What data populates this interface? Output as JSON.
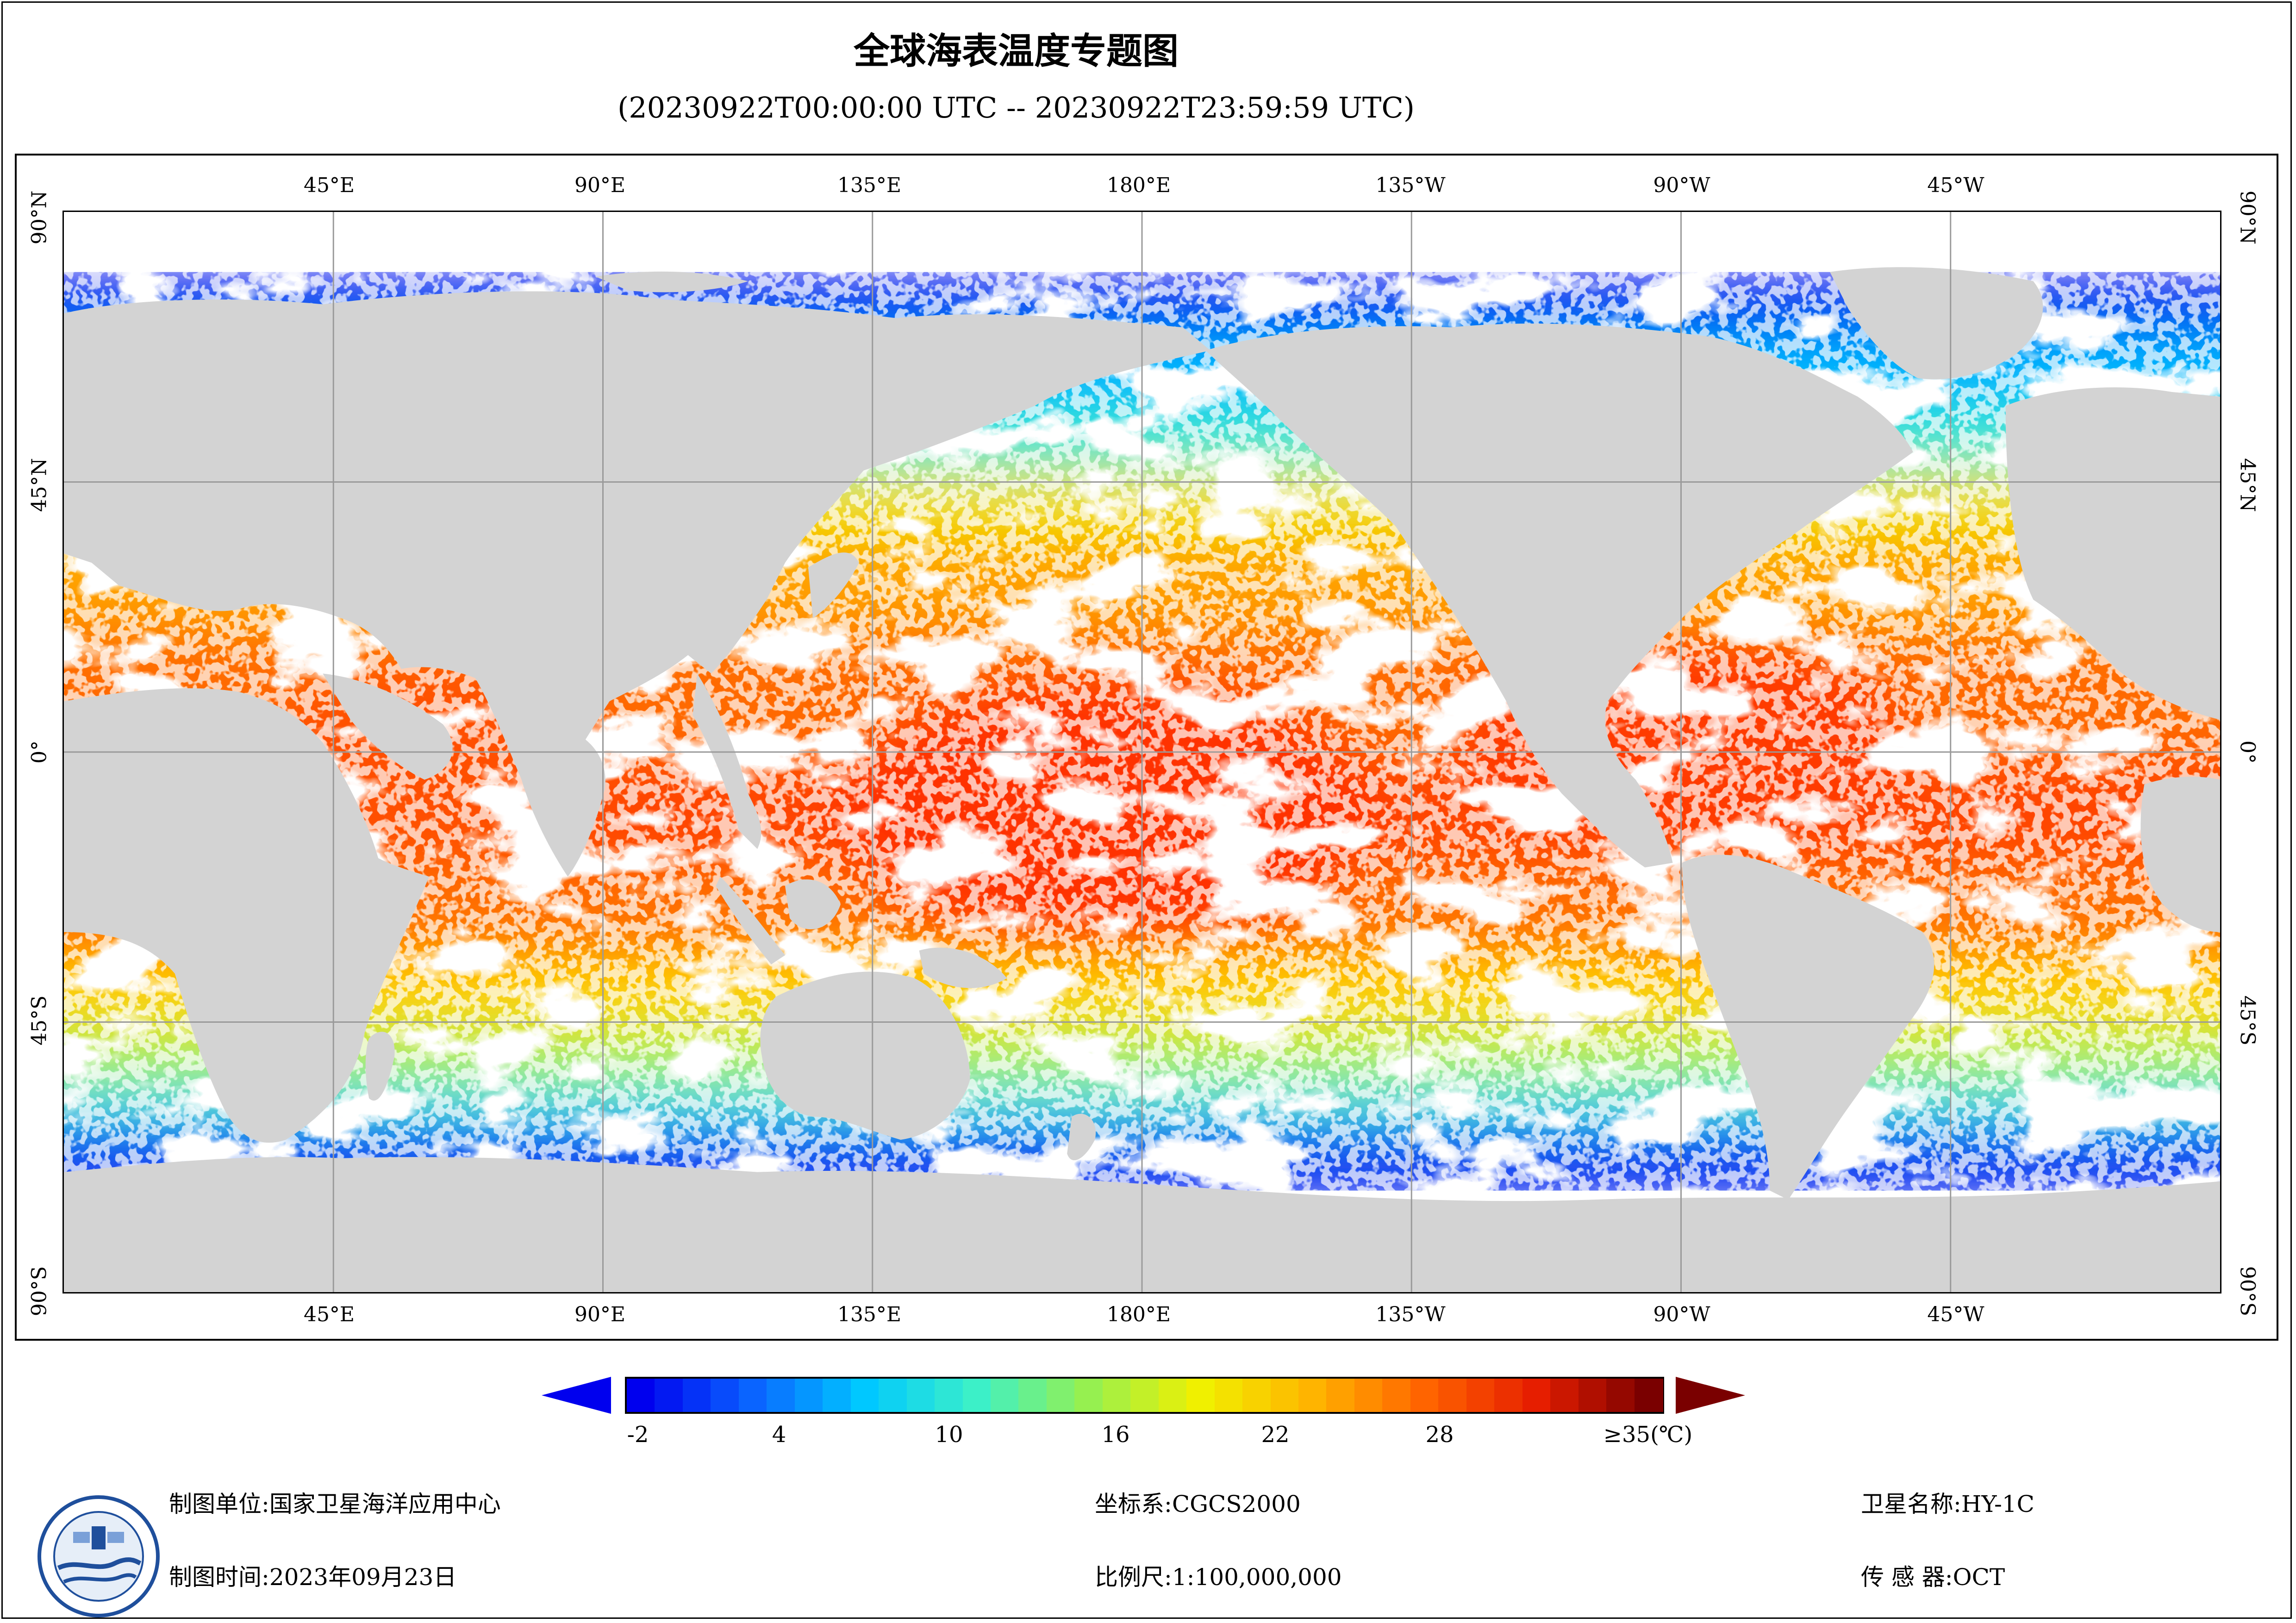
{
  "title": "全球海表温度专题图",
  "subtitle": "(20230922T00:00:00 UTC -- 20230922T23:59:59 UTC)",
  "map": {
    "lon_labels": [
      "45°E",
      "90°E",
      "135°E",
      "180°E",
      "135°W",
      "90°W",
      "45°W"
    ],
    "lat_labels": [
      "90°N",
      "45°N",
      "0°",
      "45°S",
      "90°S"
    ],
    "colors": {
      "land": "#d3d3d3",
      "cloud_nodata": "#ffffff",
      "grid": "#9a9a9a"
    }
  },
  "colorbar": {
    "ticks": [
      "-2",
      "4",
      "10",
      "16",
      "22",
      "28",
      "≥35(℃)"
    ],
    "min": -2,
    "max": 35,
    "unit": "℃",
    "colors": [
      "#0000ee",
      "#0a64ff",
      "#00c8ff",
      "#3cf0c8",
      "#96f050",
      "#f0f000",
      "#ffb400",
      "#ff6400",
      "#e61e00",
      "#7a0000"
    ]
  },
  "footer": {
    "org_label": "制图单位:国家卫星海洋应用中心",
    "time_label": "制图时间:2023年09月23日",
    "crs_label": "坐标系:CGCS2000",
    "scale_label": "比例尺:1:100,000,000",
    "satellite_label": "卫星名称:HY-1C",
    "sensor_label": "传 感 器:OCT"
  }
}
